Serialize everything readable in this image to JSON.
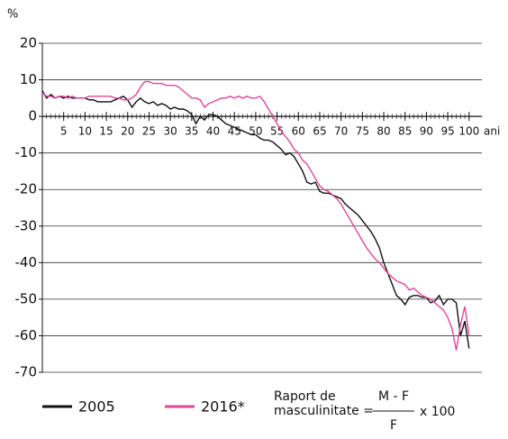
{
  "chart_data": {
    "type": "line",
    "y_label": "%",
    "x_label": "ani",
    "x": [
      0,
      1,
      2,
      3,
      4,
      5,
      6,
      7,
      8,
      9,
      10,
      11,
      12,
      13,
      14,
      15,
      16,
      17,
      18,
      19,
      20,
      21,
      22,
      23,
      24,
      25,
      26,
      27,
      28,
      29,
      30,
      31,
      32,
      33,
      34,
      35,
      36,
      37,
      38,
      39,
      40,
      41,
      42,
      43,
      44,
      45,
      46,
      47,
      48,
      49,
      50,
      51,
      52,
      53,
      54,
      55,
      56,
      57,
      58,
      59,
      60,
      61,
      62,
      63,
      64,
      65,
      66,
      67,
      68,
      69,
      70,
      71,
      72,
      73,
      74,
      75,
      76,
      77,
      78,
      79,
      80,
      81,
      82,
      83,
      84,
      85,
      86,
      87,
      88,
      89,
      90,
      91,
      92,
      93,
      94,
      95,
      96,
      97,
      98,
      99,
      100
    ],
    "series": [
      {
        "name": "2005",
        "color": "#111111",
        "values": [
          7,
          5,
          6,
          5,
          5.5,
          5,
          5.5,
          5,
          5,
          5,
          5,
          4.5,
          4.5,
          4,
          4,
          4,
          4,
          4.5,
          5,
          5.5,
          4.5,
          2.5,
          4,
          5,
          4,
          3.5,
          4,
          3,
          3.5,
          3,
          2,
          2.5,
          2,
          2,
          1.5,
          0.5,
          -2,
          0,
          -1,
          0.5,
          0.5,
          0,
          -1,
          -2,
          -2.5,
          -3,
          -3.5,
          -4,
          -4.5,
          -5,
          -5,
          -6,
          -6.5,
          -6.5,
          -7,
          -8,
          -9,
          -10.5,
          -10,
          -11,
          -13,
          -15,
          -18,
          -18.5,
          -18,
          -20.5,
          -21,
          -21,
          -21.5,
          -22,
          -22.5,
          -24,
          -25,
          -26,
          -27,
          -28.5,
          -30,
          -31.5,
          -33.5,
          -36,
          -40,
          -43,
          -46,
          -49,
          -50,
          -51.5,
          -49.5,
          -49,
          -49,
          -49.5,
          -49.5,
          -51,
          -50.5,
          -49,
          -51.5,
          -50,
          -50,
          -51,
          -60,
          -56,
          -63.5
        ]
      },
      {
        "name": "2016*",
        "color": "#e0469a",
        "values": [
          6.5,
          5.5,
          5.5,
          5,
          5.5,
          5.5,
          5,
          5.5,
          5,
          5,
          5,
          5.5,
          5.5,
          5.5,
          5.5,
          5.5,
          5.5,
          5,
          5,
          4.5,
          4.5,
          5,
          6,
          8,
          9.5,
          9.5,
          9,
          9,
          9,
          8.5,
          8.5,
          8.5,
          8,
          7,
          6,
          5,
          5,
          4.5,
          2.5,
          3.5,
          4,
          4.5,
          5,
          5,
          5.5,
          5,
          5.5,
          5,
          5.5,
          5,
          5,
          5.5,
          4,
          2,
          0,
          -2,
          -4,
          -5.5,
          -7,
          -9,
          -10,
          -12,
          -13,
          -15,
          -17,
          -19,
          -20,
          -20.5,
          -21.5,
          -22.5,
          -24,
          -26,
          -28,
          -30,
          -32,
          -34,
          -36,
          -37.5,
          -39,
          -40,
          -41.5,
          -43,
          -44,
          -45,
          -45.5,
          -46,
          -47.5,
          -47,
          -48,
          -49,
          -49.5,
          -50,
          -51,
          -52,
          -53,
          -55,
          -58,
          -64,
          -57,
          -52,
          -60
        ]
      }
    ],
    "xlim": [
      0,
      103
    ],
    "xticks": [
      5,
      10,
      15,
      20,
      25,
      30,
      35,
      40,
      45,
      50,
      55,
      60,
      65,
      70,
      75,
      80,
      85,
      90,
      95,
      100
    ],
    "ylim": [
      -70,
      20
    ],
    "yticks": [
      20,
      10,
      0,
      -10,
      -20,
      -30,
      -40,
      -50,
      -60,
      -70
    ],
    "grid": true,
    "formula": {
      "label": "Raport de",
      "label2": "masculinitate =",
      "numerator": "M - F",
      "denominator": "F",
      "suffix": "x 100"
    }
  }
}
